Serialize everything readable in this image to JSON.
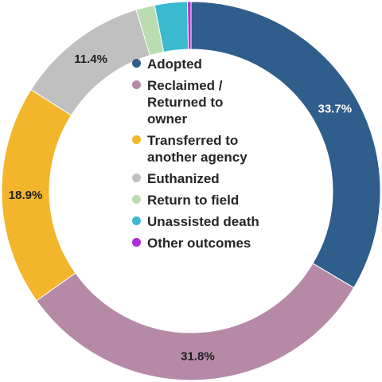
{
  "chart_data": {
    "type": "donut",
    "title": "",
    "categories": [
      "Adopted",
      "Reclaimed /\nReturned to\nowner",
      "Transferred to\nanother agency",
      "Euthanized",
      "Return to field",
      "Unassisted death",
      "Other outcomes"
    ],
    "values": [
      33.7,
      31.8,
      18.9,
      11.4,
      1.6,
      2.8,
      0.3
    ],
    "data_labels": [
      "33.7%",
      "31.8%",
      "18.9%",
      "11.4%",
      "",
      "",
      ""
    ],
    "colors": [
      "#2f5d8c",
      "#b689a6",
      "#f2b52b",
      "#c0c0c0",
      "#b9ddb0",
      "#3bb9cf",
      "#b02cd6"
    ],
    "legend_placement": "center"
  }
}
